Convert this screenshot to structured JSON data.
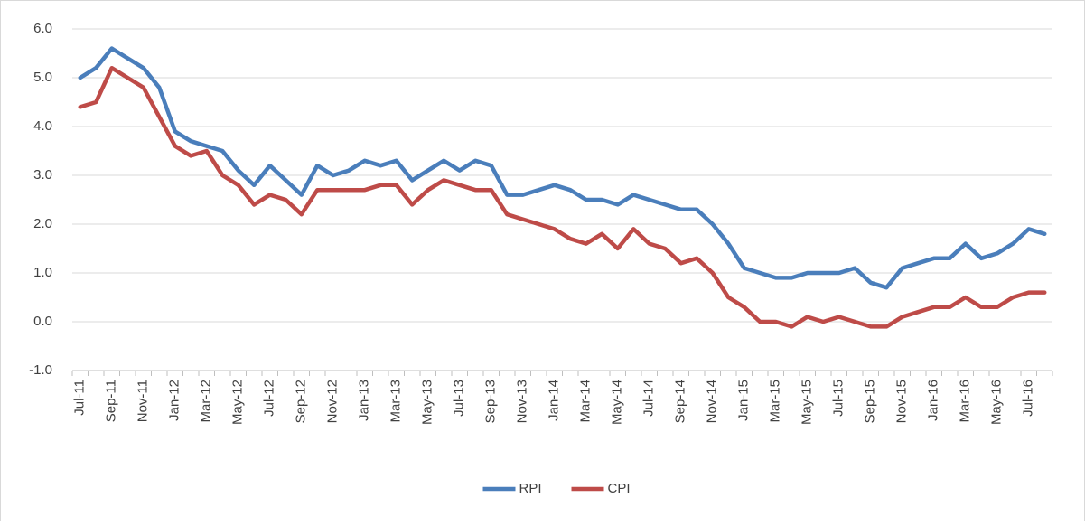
{
  "chart_data": {
    "type": "line",
    "categories": [
      "Jul-11",
      null,
      "Sep-11",
      null,
      "Nov-11",
      null,
      "Jan-12",
      null,
      "Mar-12",
      null,
      "May-12",
      null,
      "Jul-12",
      null,
      "Sep-12",
      null,
      "Nov-12",
      null,
      "Jan-13",
      null,
      "Mar-13",
      null,
      "May-13",
      null,
      "Jul-13",
      null,
      "Sep-13",
      null,
      "Nov-13",
      null,
      "Jan-14",
      null,
      "Mar-14",
      null,
      "May-14",
      null,
      "Jul-14",
      null,
      "Sep-14",
      null,
      "Nov-14",
      null,
      "Jan-15",
      null,
      "Mar-15",
      null,
      "May-15",
      null,
      "Jul-15",
      null,
      "Sep-15",
      null,
      "Nov-15",
      null,
      "Jan-16",
      null,
      "Mar-16",
      null,
      "May-16",
      null,
      "Jul-16",
      null
    ],
    "series": [
      {
        "name": "RPI",
        "color": "#4a7ebb",
        "values": [
          5.0,
          5.2,
          5.6,
          5.4,
          5.2,
          4.8,
          3.9,
          3.7,
          3.6,
          3.5,
          3.1,
          2.8,
          3.2,
          2.9,
          2.6,
          3.2,
          3.0,
          3.1,
          3.3,
          3.2,
          3.3,
          2.9,
          3.1,
          3.3,
          3.1,
          3.3,
          3.2,
          2.6,
          2.6,
          2.7,
          2.8,
          2.7,
          2.5,
          2.5,
          2.4,
          2.6,
          2.5,
          2.4,
          2.3,
          2.3,
          2.0,
          1.6,
          1.1,
          1.0,
          0.9,
          0.9,
          1.0,
          1.0,
          1.0,
          1.1,
          0.8,
          0.7,
          1.1,
          1.2,
          1.3,
          1.3,
          1.6,
          1.3,
          1.4,
          1.6,
          1.9,
          1.8
        ]
      },
      {
        "name": "CPI",
        "color": "#be4b48",
        "values": [
          4.4,
          4.5,
          5.2,
          5.0,
          4.8,
          4.2,
          3.6,
          3.4,
          3.5,
          3.0,
          2.8,
          2.4,
          2.6,
          2.5,
          2.2,
          2.7,
          2.7,
          2.7,
          2.7,
          2.8,
          2.8,
          2.4,
          2.7,
          2.9,
          2.8,
          2.7,
          2.7,
          2.2,
          2.1,
          2.0,
          1.9,
          1.7,
          1.6,
          1.8,
          1.5,
          1.9,
          1.6,
          1.5,
          1.2,
          1.3,
          1.0,
          0.5,
          0.3,
          0.0,
          0.0,
          -0.1,
          0.1,
          0.0,
          0.1,
          0.0,
          -0.1,
          -0.1,
          0.1,
          0.2,
          0.3,
          0.3,
          0.5,
          0.3,
          0.3,
          0.5,
          0.6,
          0.6
        ]
      }
    ],
    "ylim": [
      -1,
      6
    ],
    "yticks": [
      {
        "value": -1,
        "label": "-1.0"
      },
      {
        "value": 0,
        "label": "0.0"
      },
      {
        "value": 1,
        "label": "1.0"
      },
      {
        "value": 2,
        "label": "2.0"
      },
      {
        "value": 3,
        "label": "3.0"
      },
      {
        "value": 4,
        "label": "4.0"
      },
      {
        "value": 5,
        "label": "5.0"
      },
      {
        "value": 6,
        "label": "6.0"
      }
    ],
    "grid": true,
    "legend": "bottom"
  }
}
